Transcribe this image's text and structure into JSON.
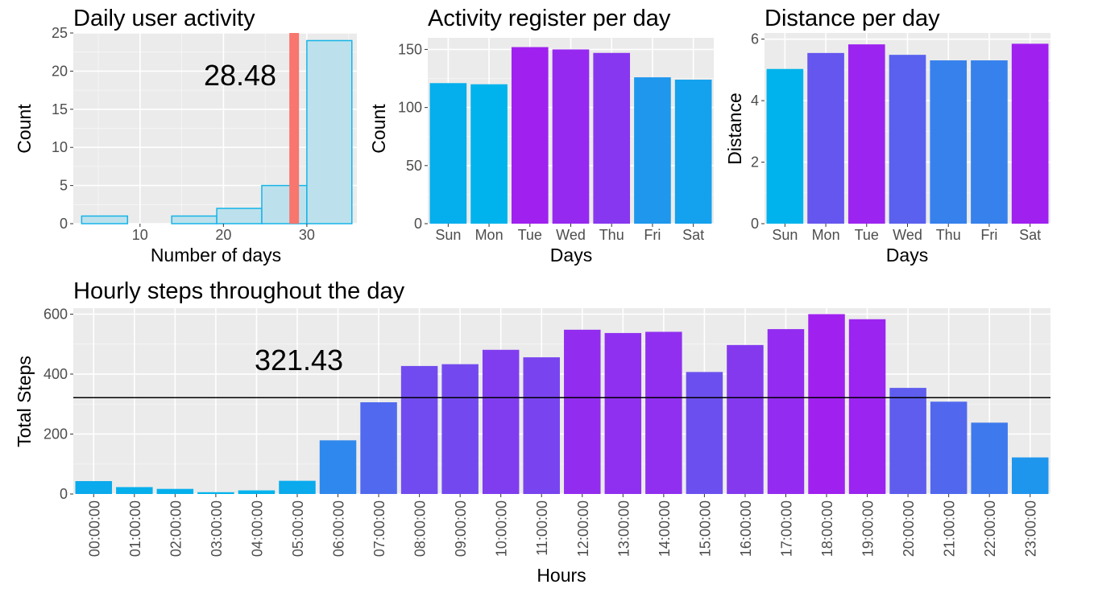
{
  "colors": {
    "panel_bg": "#ebebeb",
    "grid_major": "#ffffff",
    "hist_fill": "#bde1ec",
    "hist_stroke": "#16b4e8",
    "mean_line": "#f8766d",
    "ref_line": "#000000",
    "low": "#00b3ec",
    "high": "#a020f0"
  },
  "chart_data": [
    {
      "id": "daily",
      "type": "histogram",
      "title": "Daily user activity",
      "xlabel": "Number of days",
      "ylabel": "Count",
      "xlim": [
        2,
        36
      ],
      "ylim": [
        0,
        25
      ],
      "x_ticks": [
        10,
        20,
        30
      ],
      "y_ticks": [
        0,
        5,
        10,
        15,
        20,
        25
      ],
      "bins": [
        {
          "x0": 3,
          "x1": 8.5,
          "count": 1
        },
        {
          "x0": 8.5,
          "x1": 13.8,
          "count": 0
        },
        {
          "x0": 13.8,
          "x1": 19.2,
          "count": 1
        },
        {
          "x0": 19.2,
          "x1": 24.6,
          "count": 2
        },
        {
          "x0": 24.6,
          "x1": 30,
          "count": 5
        },
        {
          "x0": 30,
          "x1": 35.4,
          "count": 24
        }
      ],
      "mean": 28.48,
      "annotation": "28.48",
      "grid": true
    },
    {
      "id": "register",
      "type": "bar",
      "title": "Activity register per day",
      "xlabel": "Days",
      "ylabel": "Count",
      "categories": [
        "Sun",
        "Mon",
        "Tue",
        "Wed",
        "Thu",
        "Fri",
        "Sat"
      ],
      "values": [
        121,
        120,
        152,
        150,
        147,
        126,
        124
      ],
      "ylim": [
        0,
        160
      ],
      "y_ticks": [
        0,
        50,
        100,
        150
      ],
      "grid": true
    },
    {
      "id": "distance",
      "type": "bar",
      "title": "Distance per day",
      "xlabel": "Days",
      "ylabel": "Distance",
      "categories": [
        "Sun",
        "Mon",
        "Tue",
        "Wed",
        "Thu",
        "Fri",
        "Sat"
      ],
      "values": [
        5.03,
        5.55,
        5.83,
        5.49,
        5.31,
        5.31,
        5.85
      ],
      "ylim": [
        0,
        6.2
      ],
      "y_ticks": [
        0,
        2,
        4,
        6
      ],
      "grid": true
    },
    {
      "id": "hourly",
      "type": "bar",
      "title": "Hourly steps throughout the day",
      "xlabel": "Hours",
      "ylabel": "Total Steps",
      "categories": [
        "00:00:00",
        "01:00:00",
        "02:00:00",
        "03:00:00",
        "04:00:00",
        "05:00:00",
        "06:00:00",
        "07:00:00",
        "08:00:00",
        "09:00:00",
        "10:00:00",
        "11:00:00",
        "12:00:00",
        "13:00:00",
        "14:00:00",
        "15:00:00",
        "16:00:00",
        "17:00:00",
        "18:00:00",
        "19:00:00",
        "20:00:00",
        "21:00:00",
        "22:00:00",
        "23:00:00"
      ],
      "values": [
        43,
        23,
        17,
        6,
        12,
        44,
        179,
        306,
        427,
        433,
        481,
        456,
        548,
        537,
        541,
        407,
        497,
        550,
        600,
        583,
        354,
        308,
        238,
        122
      ],
      "ylim": [
        0,
        620
      ],
      "y_ticks": [
        0,
        200,
        400,
        600
      ],
      "reference_line": 321.43,
      "annotation": "321.43",
      "grid": true
    }
  ]
}
